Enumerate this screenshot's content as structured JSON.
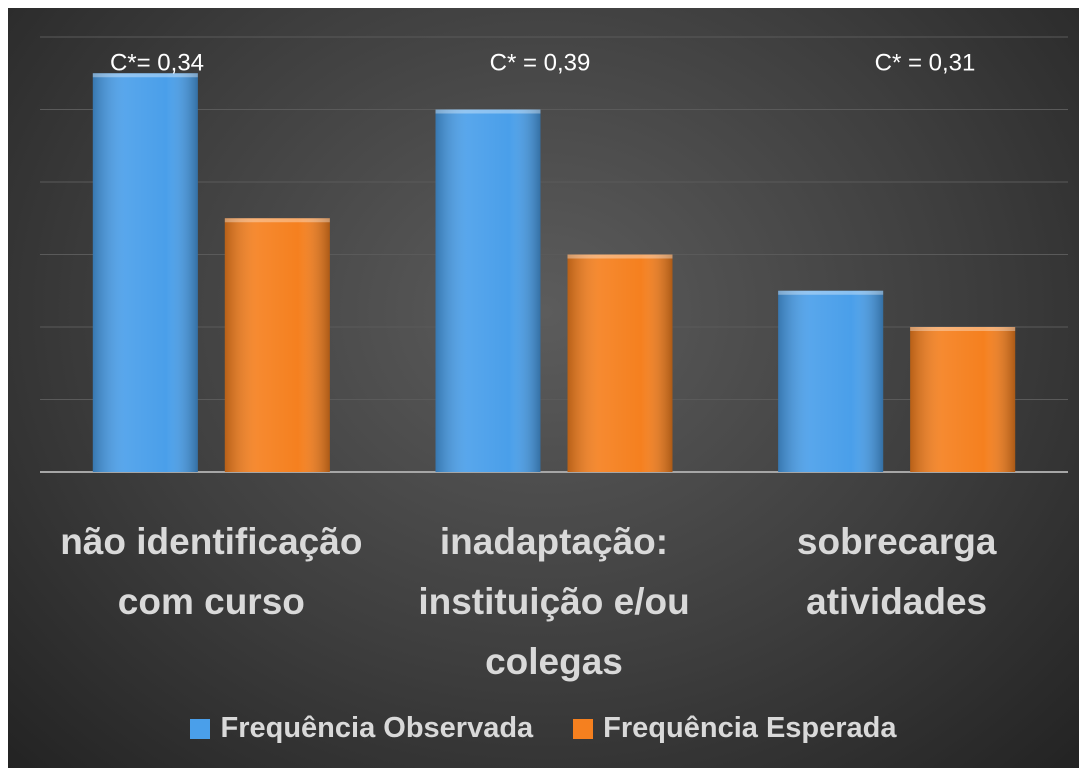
{
  "chart_data": {
    "type": "bar",
    "categories": [
      "não identificação com curso",
      "inadaptação: instituição e/ou colegas",
      "sobrecarga atividades"
    ],
    "series": [
      {
        "name": "Frequência Observada",
        "color": "#4a9fea",
        "values": [
          5.5,
          5.0,
          2.5
        ]
      },
      {
        "name": "Frequência Esperada",
        "color": "#f5801f",
        "values": [
          3.5,
          3.0,
          2.0
        ]
      }
    ],
    "annotations": [
      "C*= 0,34",
      "C* = 0,39",
      "C* = 0,31"
    ],
    "ylim": [
      0,
      6
    ],
    "yticks": [
      0,
      1,
      2,
      3,
      4,
      5,
      6
    ],
    "grid": true,
    "legend": "bottom"
  }
}
